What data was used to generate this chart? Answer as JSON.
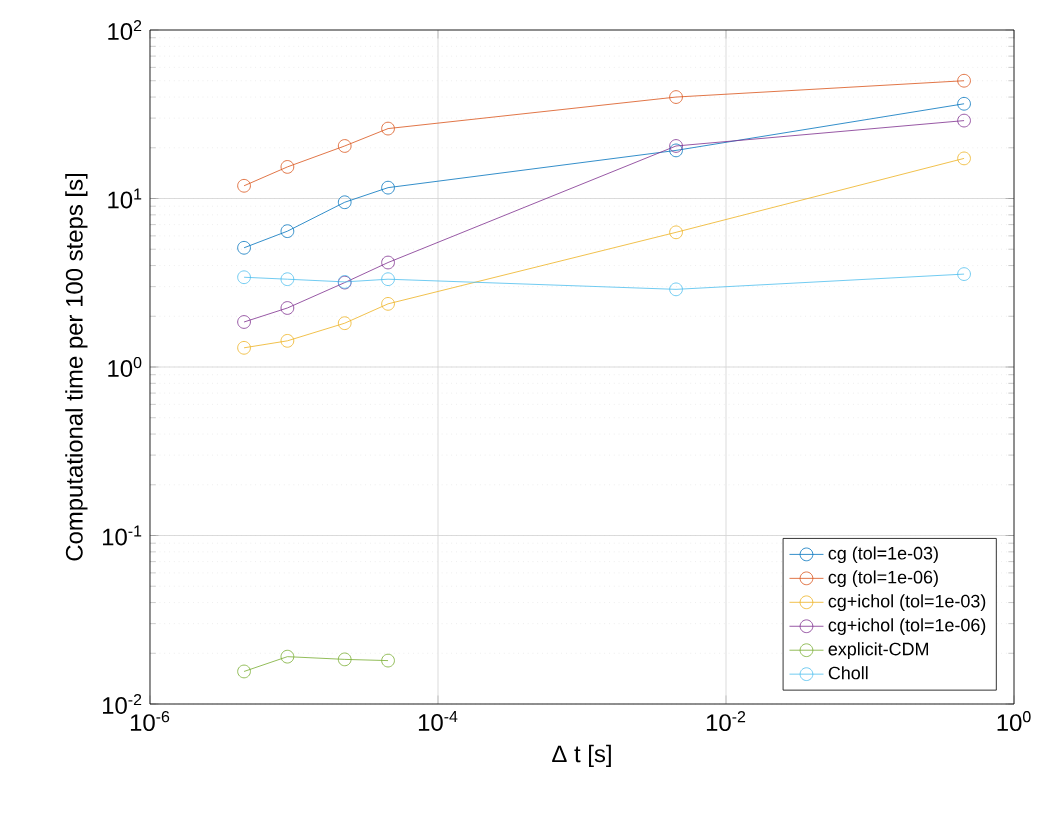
{
  "chart_data": {
    "type": "line",
    "xlabel": "Δ t [s]",
    "ylabel": "Computational time per 100 steps [s]",
    "log": "xy",
    "grid": true,
    "legend": "bottom right",
    "marker": "circle",
    "line_style": "solid",
    "x": [
      4.5e-06,
      9e-06,
      2.25e-05,
      4.5e-05,
      0.0045,
      0.45
    ],
    "xlim": [
      1e-06,
      1
    ],
    "ylim": [
      0.01,
      100
    ],
    "xticks": [
      {
        "value": 1e-06,
        "label": "10$^{-6}$"
      },
      {
        "value": 0.0001,
        "label": "10$^{-4}$"
      },
      {
        "value": 0.01,
        "label": "10$^{-2}$"
      },
      {
        "value": 1,
        "label": "10$^{0}$"
      }
    ],
    "yticks": [
      {
        "value": 0.01,
        "label": "10$^{-2}$"
      },
      {
        "value": 0.1,
        "label": "10$^{-1}$"
      },
      {
        "value": 1,
        "label": "10$^{0}$"
      },
      {
        "value": 10,
        "label": "10$^{1}$"
      },
      {
        "value": 100,
        "label": "10$^{2}$"
      }
    ],
    "series": [
      {
        "name": "cg (tol=1e-03)",
        "color": "#0072bd",
        "values": [
          5.1,
          6.4,
          9.5,
          11.6,
          19.3,
          36.5
        ]
      },
      {
        "name": "cg (tol=1e-06)",
        "color": "#d95319",
        "values": [
          11.9,
          15.4,
          20.5,
          26,
          40,
          50
        ]
      },
      {
        "name": "cg+ichol (tol=1e-03)",
        "color": "#edb120",
        "values": [
          1.3,
          1.43,
          1.82,
          2.37,
          6.3,
          17.3
        ]
      },
      {
        "name": "cg+ichol (tol=1e-06)",
        "color": "#7e2f8e",
        "values": [
          1.85,
          2.24,
          3.17,
          4.17,
          20.5,
          29
        ]
      },
      {
        "name": "explicit-CDM",
        "color": "#77ac30",
        "values": [
          0.0156,
          0.0191,
          0.0184,
          0.0181,
          null,
          null
        ]
      },
      {
        "name": "Choll",
        "color": "#4dbeee",
        "values": [
          3.41,
          3.32,
          3.2,
          3.32,
          2.89,
          3.56
        ]
      }
    ]
  }
}
